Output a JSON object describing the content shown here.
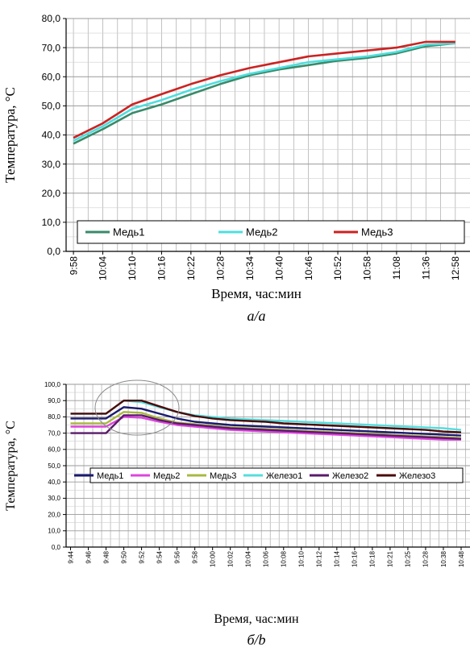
{
  "chart_data": [
    {
      "type": "line",
      "ylabel": "Температура, °C",
      "xlabel": "Время,  час:мин",
      "caption": "a/a",
      "ylim": [
        0,
        80
      ],
      "yticks": [
        "0,0",
        "10,0",
        "20,0",
        "30,0",
        "40,0",
        "50,0",
        "60,0",
        "70,0",
        "80,0"
      ],
      "categories": [
        "9:58",
        "10:04",
        "10:10",
        "10:16",
        "10:22",
        "10:28",
        "10:34",
        "10:40",
        "10:46",
        "10:52",
        "10:58",
        "11:08",
        "11:36",
        "12:58"
      ],
      "grid": true,
      "legend_position": "bottom",
      "series": [
        {
          "name": "Медь1",
          "color": "#3a8a6a",
          "values": [
            37,
            42,
            47.5,
            50.5,
            54,
            57.5,
            60.5,
            62.5,
            64,
            65.5,
            66.5,
            68,
            70.5,
            71.5
          ]
        },
        {
          "name": "Медь2",
          "color": "#4fdede",
          "values": [
            38,
            43,
            49,
            52,
            55.5,
            58.5,
            61,
            63,
            65,
            66,
            67,
            68.5,
            71,
            71.5
          ]
        },
        {
          "name": "Медь3",
          "color": "#cc2222",
          "values": [
            39,
            44,
            50.5,
            54,
            57.5,
            60.5,
            63,
            65,
            67,
            68,
            69,
            70,
            72,
            72
          ]
        }
      ]
    },
    {
      "type": "line",
      "ylabel": "Температура, °C",
      "xlabel": "Время,  час:мин",
      "caption": "б/b",
      "ylim": [
        0,
        100
      ],
      "yticks": [
        "0,0",
        "10,0",
        "20,0",
        "30,0",
        "40,0",
        "50,0",
        "60,0",
        "70,0",
        "80,0",
        "90,0",
        "100,0"
      ],
      "categories": [
        "9:44",
        "9:46",
        "9:48",
        "9:50",
        "9:52",
        "9:54",
        "9:56",
        "9:58",
        "10:00",
        "10:02",
        "10:04",
        "10:06",
        "10:08",
        "10:10",
        "10:12",
        "10:14",
        "10:16",
        "10:18",
        "10:21",
        "10:25",
        "10:28",
        "10:38",
        "10:48"
      ],
      "grid": true,
      "legend_position": "middle",
      "series": [
        {
          "name": "Медь1",
          "color": "#1a1a6e",
          "values": [
            79,
            79,
            79,
            86,
            85,
            82,
            79,
            77,
            76,
            75,
            74.5,
            74,
            73.5,
            73,
            72.5,
            72,
            71.5,
            71,
            70.5,
            70,
            69.5,
            69,
            68.5
          ]
        },
        {
          "name": "Медь2",
          "color": "#dd44dd",
          "values": [
            74,
            74,
            74,
            80,
            79.5,
            77,
            75,
            74,
            73,
            72,
            71.5,
            71,
            70.5,
            70,
            69.5,
            69,
            68.5,
            68,
            67.5,
            67,
            66.5,
            66,
            66
          ]
        },
        {
          "name": "Медь3",
          "color": "#a8b840",
          "values": [
            76,
            76,
            76,
            83,
            82.5,
            79,
            76.5,
            75.5,
            74.5,
            73.5,
            73,
            72.5,
            72,
            71.5,
            71,
            70.5,
            70,
            69.5,
            69,
            68.5,
            68,
            67.5,
            67
          ]
        },
        {
          "name": "Железо1",
          "color": "#55dddd",
          "values": [
            82,
            82,
            82,
            90,
            89,
            86,
            83,
            81,
            80,
            79,
            78.5,
            78,
            77.5,
            77,
            76.5,
            76,
            75.5,
            75,
            74.5,
            74,
            73.5,
            73,
            72
          ]
        },
        {
          "name": "Железо2",
          "color": "#5a1a6a",
          "values": [
            70,
            70,
            70,
            81,
            81,
            78,
            76,
            75,
            74,
            73,
            72.5,
            72,
            71.5,
            71,
            70.5,
            70,
            69.5,
            69,
            68.5,
            68,
            67.5,
            67,
            66.5
          ]
        },
        {
          "name": "Железо3",
          "color": "#4a0a0a",
          "values": [
            82,
            82,
            82,
            90,
            90,
            86.5,
            83,
            80.5,
            79,
            78,
            77.5,
            77,
            76,
            75.5,
            75,
            74.5,
            74,
            73.5,
            73,
            72.5,
            72,
            71,
            70.5
          ]
        }
      ]
    }
  ]
}
